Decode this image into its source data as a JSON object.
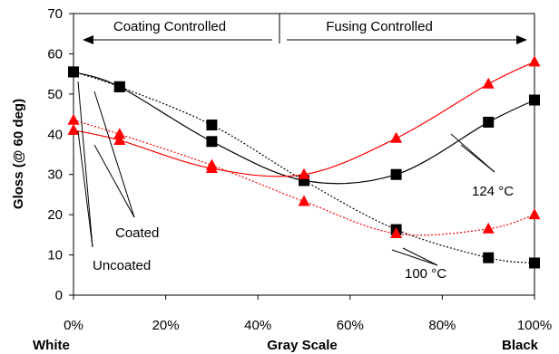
{
  "chart_data": {
    "type": "line",
    "xlim": [
      0,
      100
    ],
    "ylim": [
      0,
      70
    ],
    "x_ticks": [
      "0%",
      "20%",
      "40%",
      "60%",
      "80%",
      "100%"
    ],
    "y_ticks": [
      "0",
      "10",
      "20",
      "30",
      "40",
      "50",
      "60",
      "70"
    ],
    "ylabel": "Gloss (@ 60 deg)",
    "xlabel_left": "White",
    "xlabel": "Gray Scale",
    "xlabel_right": "Black",
    "regions": {
      "left_label": "Coating Controlled",
      "right_label": "Fusing Controlled",
      "split_x": 45
    },
    "annotations": {
      "coated": "Coated",
      "uncoated": "Uncoated",
      "t124": "124 °C",
      "t100": "100 °C"
    },
    "series": [
      {
        "marker": "square",
        "color": "#000000",
        "dashed": false,
        "x": [
          0,
          10,
          30,
          50,
          70,
          90,
          100
        ],
        "y": [
          55.5,
          51.8,
          38.2,
          28.5,
          30,
          43,
          48.5
        ]
      },
      {
        "marker": "square",
        "color": "#000000",
        "dashed": true,
        "x": [
          0,
          10,
          30,
          50,
          70,
          90,
          100
        ],
        "y": [
          55.5,
          51.8,
          42.3,
          28.5,
          16.3,
          9.3,
          8
        ]
      },
      {
        "marker": "triangle",
        "color": "#ff0000",
        "dashed": false,
        "x": [
          0,
          10,
          30,
          50,
          70,
          90,
          100
        ],
        "y": [
          41,
          38.5,
          31.5,
          30,
          39,
          52.5,
          58
        ]
      },
      {
        "marker": "triangle",
        "color": "#ff0000",
        "dashed": true,
        "x": [
          0,
          10,
          30,
          50,
          70,
          90,
          100
        ],
        "y": [
          43.5,
          40,
          32.3,
          23.3,
          15.3,
          16.5,
          20
        ]
      }
    ]
  }
}
